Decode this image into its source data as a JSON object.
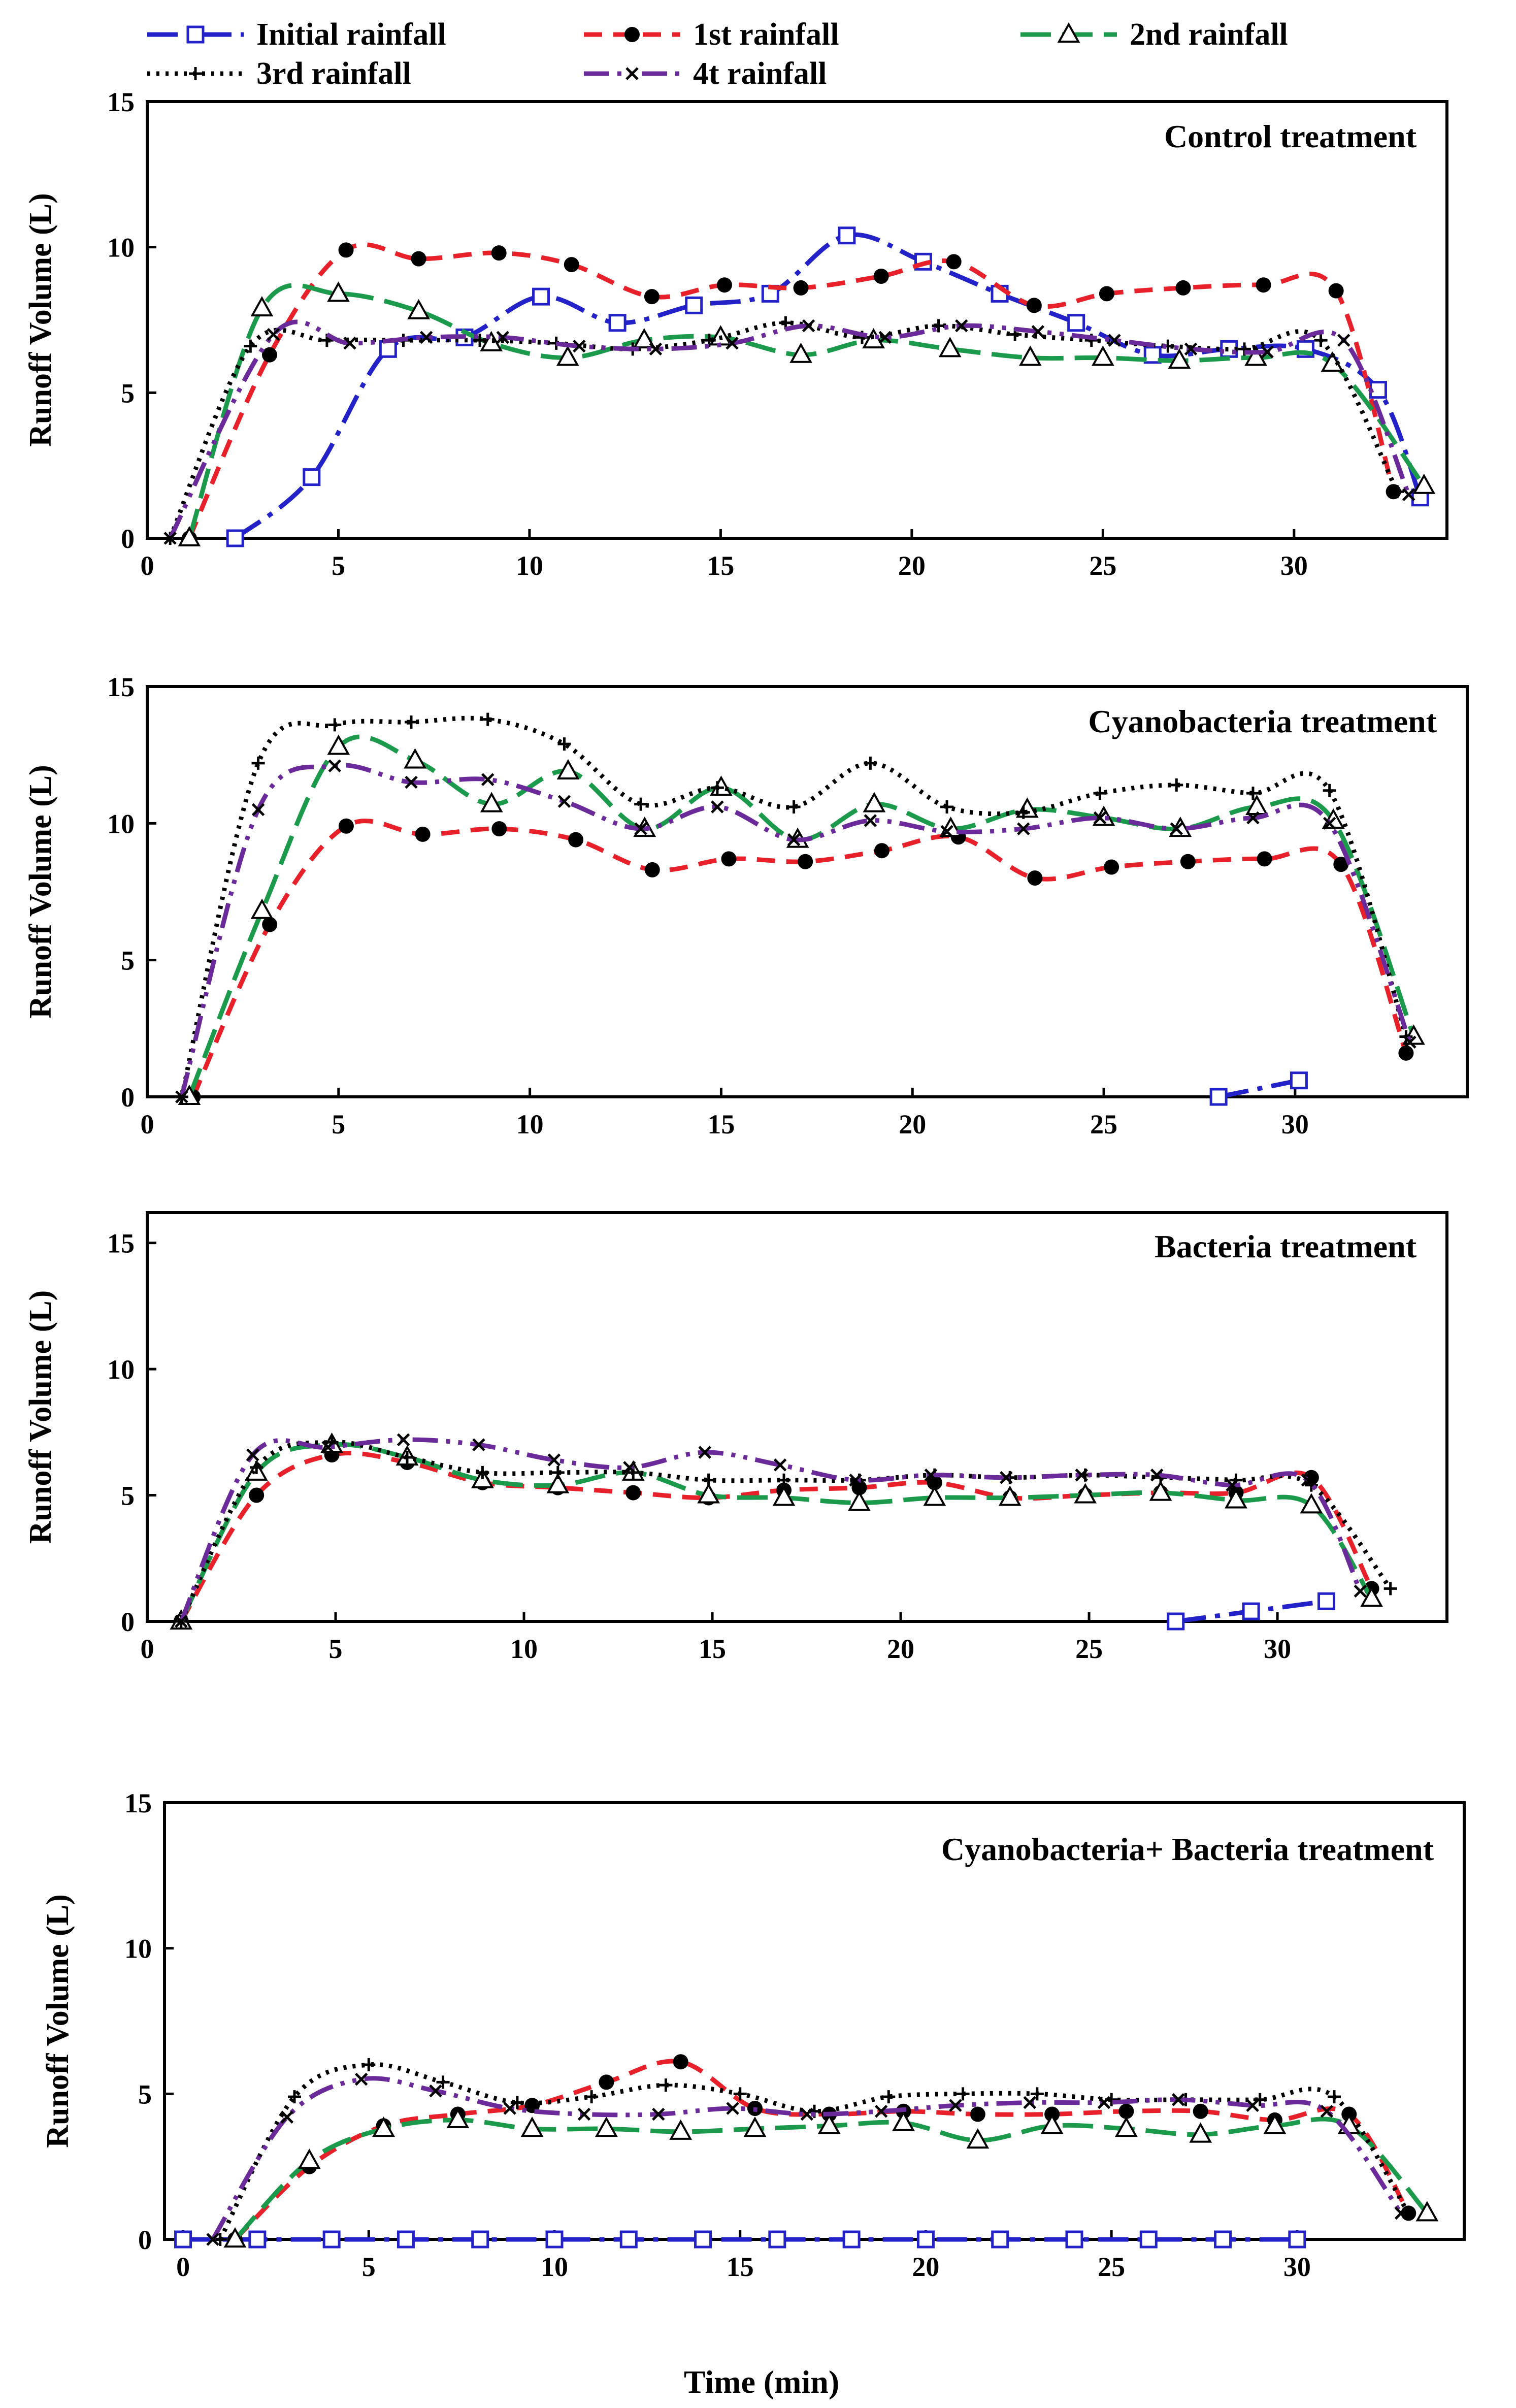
{
  "legend": [
    {
      "name": "Initial rainfall",
      "color": "#2222c8",
      "marker": "square",
      "dash": "60,18,10,18"
    },
    {
      "name": "1st rainfall",
      "color": "#e8202a",
      "marker": "dot",
      "dash": "36,22"
    },
    {
      "name": "2nd rainfall",
      "color": "#1a9a4a",
      "marker": "triangle",
      "dash": "60,22"
    },
    {
      "name": "3rd rainfall",
      "color": "#000000",
      "marker": "plus",
      "dash": "6,12"
    },
    {
      "name": "4t rainfall",
      "color": "#6a2a9a",
      "marker": "cross",
      "dash": "50,16,8,16,8,16"
    }
  ],
  "xlabel": "Time (min)",
  "chart_data": [
    {
      "type": "line",
      "title": "Control treatment",
      "ylabel": "Runoff Volume (L)",
      "xlim": [
        0,
        34
      ],
      "ylim": [
        0,
        15
      ],
      "xticks": [
        0,
        5,
        10,
        15,
        20,
        25,
        30
      ],
      "yticks": [
        0,
        5,
        10,
        15
      ],
      "series": [
        {
          "name": "Initial rainfall",
          "x": [
            2.3,
            4.3,
            6.3,
            8.3,
            10.3,
            12.3,
            14.3,
            16.3,
            18.3,
            20.3,
            22.3,
            24.3,
            26.3,
            28.3,
            30.3,
            32.2,
            33.3
          ],
          "y": [
            0,
            2.1,
            6.5,
            6.9,
            8.3,
            7.4,
            8.0,
            8.4,
            10.4,
            9.5,
            8.4,
            7.4,
            6.3,
            6.5,
            6.5,
            5.1,
            1.4
          ]
        },
        {
          "name": "1st rainfall",
          "x": [
            1.1,
            3.2,
            5.2,
            7.1,
            9.2,
            11.1,
            13.2,
            15.1,
            17.1,
            19.2,
            21.1,
            23.2,
            25.1,
            27.1,
            29.2,
            31.1,
            32.6
          ],
          "y": [
            0,
            6.3,
            9.9,
            9.6,
            9.8,
            9.4,
            8.3,
            8.7,
            8.6,
            9.0,
            9.5,
            8.0,
            8.4,
            8.6,
            8.7,
            8.5,
            1.6
          ]
        },
        {
          "name": "2nd rainfall",
          "x": [
            1.1,
            3.0,
            5.0,
            7.1,
            9.0,
            11.0,
            13.0,
            15.0,
            17.1,
            19.0,
            21.0,
            23.1,
            25.0,
            27.0,
            29.0,
            31.0,
            33.4
          ],
          "y": [
            0,
            7.9,
            8.4,
            7.8,
            6.7,
            6.2,
            6.8,
            6.9,
            6.3,
            6.8,
            6.5,
            6.2,
            6.2,
            6.1,
            6.2,
            6.0,
            1.8
          ]
        },
        {
          "name": "3rd rainfall",
          "x": [
            0.6,
            2.7,
            4.7,
            6.7,
            8.7,
            10.7,
            12.7,
            14.7,
            16.7,
            18.7,
            20.7,
            22.7,
            24.7,
            26.7,
            28.7,
            30.7,
            32.7
          ],
          "y": [
            0,
            6.6,
            6.8,
            6.8,
            6.8,
            6.7,
            6.5,
            6.8,
            7.4,
            6.9,
            7.3,
            7.0,
            6.8,
            6.6,
            6.5,
            6.8,
            1.6
          ]
        },
        {
          "name": "4t rainfall",
          "x": [
            0.6,
            3.3,
            5.3,
            7.3,
            9.3,
            11.3,
            13.3,
            15.3,
            17.3,
            19.3,
            21.3,
            23.3,
            25.3,
            27.3,
            29.3,
            31.3,
            33.0
          ],
          "y": [
            0,
            7.0,
            6.7,
            6.9,
            6.9,
            6.6,
            6.5,
            6.7,
            7.3,
            6.9,
            7.3,
            7.1,
            6.8,
            6.5,
            6.4,
            6.8,
            1.5
          ]
        }
      ]
    },
    {
      "type": "line",
      "title": "Cyanobacteria treatment",
      "ylabel": "Runoff Volume (L)",
      "xlim": [
        0,
        34.5
      ],
      "ylim": [
        0,
        15
      ],
      "xticks": [
        0,
        5,
        10,
        15,
        20,
        25,
        30
      ],
      "yticks": [
        0,
        5,
        10,
        15
      ],
      "series": [
        {
          "name": "Initial rainfall",
          "x": [
            28.0,
            30.1
          ],
          "y": [
            0,
            0.6
          ]
        },
        {
          "name": "1st rainfall",
          "x": [
            1.2,
            3.2,
            5.2,
            7.2,
            9.2,
            11.2,
            13.2,
            15.2,
            17.2,
            19.2,
            21.2,
            23.2,
            25.2,
            27.2,
            29.2,
            31.2,
            32.9
          ],
          "y": [
            0,
            6.3,
            9.9,
            9.6,
            9.8,
            9.4,
            8.3,
            8.7,
            8.6,
            9.0,
            9.5,
            8.0,
            8.4,
            8.6,
            8.7,
            8.5,
            1.6
          ]
        },
        {
          "name": "2nd rainfall",
          "x": [
            1.1,
            3.0,
            5.0,
            7.0,
            9.0,
            11.0,
            13.0,
            15.0,
            17.0,
            19.0,
            21.0,
            23.0,
            25.0,
            27.0,
            29.0,
            31.0,
            33.1
          ],
          "y": [
            0,
            6.8,
            12.8,
            12.3,
            10.7,
            11.9,
            9.8,
            11.3,
            9.4,
            10.7,
            9.8,
            10.5,
            10.2,
            9.8,
            10.6,
            10.1,
            2.2
          ]
        },
        {
          "name": "3rd rainfall",
          "x": [
            0.9,
            2.9,
            4.9,
            6.9,
            8.9,
            10.9,
            12.9,
            14.9,
            16.9,
            18.9,
            20.9,
            22.9,
            24.9,
            26.9,
            28.9,
            30.9,
            32.9
          ],
          "y": [
            0,
            12.2,
            13.6,
            13.7,
            13.8,
            12.9,
            10.7,
            11.3,
            10.6,
            12.2,
            10.6,
            10.4,
            11.1,
            11.4,
            11.1,
            11.2,
            2.2
          ]
        },
        {
          "name": "4t rainfall",
          "x": [
            0.9,
            2.9,
            4.9,
            6.9,
            8.9,
            10.9,
            12.9,
            14.9,
            16.9,
            18.9,
            20.9,
            22.9,
            24.9,
            26.9,
            28.9,
            30.9,
            33.0
          ],
          "y": [
            0,
            10.5,
            12.1,
            11.5,
            11.6,
            10.8,
            9.8,
            10.6,
            9.4,
            10.1,
            9.7,
            9.8,
            10.2,
            9.8,
            10.2,
            10.0,
            2.0
          ]
        }
      ]
    },
    {
      "type": "line",
      "title": "Bacteria treatment",
      "ylabel": "Runoff Volume (L)",
      "xlim": [
        0,
        34.5
      ],
      "ylim": [
        0,
        16.2
      ],
      "xticks": [
        0,
        5,
        10,
        15,
        20,
        25,
        30
      ],
      "yticks": [
        0,
        5,
        10,
        15
      ],
      "series": [
        {
          "name": "Initial rainfall",
          "x": [
            27.3,
            29.3,
            31.3
          ],
          "y": [
            0,
            0.4,
            0.8
          ]
        },
        {
          "name": "1st rainfall",
          "x": [
            0.9,
            2.9,
            4.9,
            6.9,
            8.9,
            10.9,
            12.9,
            14.9,
            16.9,
            18.9,
            20.9,
            22.9,
            24.9,
            26.9,
            28.9,
            30.9,
            32.5
          ],
          "y": [
            0,
            5.0,
            6.6,
            6.3,
            5.5,
            5.3,
            5.1,
            4.9,
            5.2,
            5.3,
            5.5,
            4.9,
            5.0,
            5.1,
            5.1,
            5.7,
            1.3
          ]
        },
        {
          "name": "2nd rainfall",
          "x": [
            0.9,
            2.9,
            4.9,
            6.9,
            8.9,
            10.9,
            12.9,
            14.9,
            16.9,
            18.9,
            20.9,
            22.9,
            24.9,
            26.9,
            28.9,
            30.9,
            32.5
          ],
          "y": [
            0,
            5.9,
            7.0,
            6.5,
            5.6,
            5.4,
            5.9,
            5.0,
            4.9,
            4.7,
            4.9,
            4.9,
            5.0,
            5.1,
            4.8,
            4.6,
            0.9
          ]
        },
        {
          "name": "3rd rainfall",
          "x": [
            0.9,
            2.9,
            4.9,
            6.9,
            8.9,
            10.9,
            12.9,
            14.9,
            16.9,
            18.9,
            20.9,
            22.9,
            24.9,
            26.9,
            28.9,
            30.9,
            33.0
          ],
          "y": [
            0,
            6.1,
            7.1,
            6.5,
            5.9,
            5.9,
            5.9,
            5.6,
            5.6,
            5.6,
            5.8,
            5.7,
            5.8,
            5.7,
            5.6,
            5.4,
            1.3
          ]
        },
        {
          "name": "4t rainfall",
          "x": [
            0.9,
            2.8,
            4.8,
            6.8,
            8.8,
            10.8,
            12.8,
            14.8,
            16.8,
            18.8,
            20.8,
            22.8,
            24.8,
            26.8,
            28.8,
            30.8,
            32.2
          ],
          "y": [
            0,
            6.6,
            6.9,
            7.2,
            7.0,
            6.4,
            6.1,
            6.7,
            6.2,
            5.6,
            5.8,
            5.7,
            5.8,
            5.8,
            5.4,
            5.6,
            1.2
          ]
        }
      ]
    },
    {
      "type": "line",
      "title": "Cyanobacteria+ Bacteria treatment",
      "ylabel": "Runoff Volume (L)",
      "xlim": [
        -0.5,
        34.5
      ],
      "ylim": [
        0,
        15
      ],
      "xticks": [
        0,
        5,
        10,
        15,
        20,
        25,
        30
      ],
      "yticks": [
        0,
        5,
        10,
        15
      ],
      "series": [
        {
          "name": "Initial rainfall",
          "x": [
            0,
            2,
            4,
            6,
            8,
            10,
            12,
            14,
            16,
            18,
            20,
            22,
            24,
            26,
            28,
            30
          ],
          "y": [
            0,
            0,
            0,
            0,
            0,
            0,
            0,
            0,
            0,
            0,
            0,
            0,
            0,
            0,
            0,
            0
          ]
        },
        {
          "name": "1st rainfall",
          "x": [
            1.4,
            3.4,
            5.4,
            7.4,
            9.4,
            11.4,
            13.4,
            15.4,
            17.4,
            19.4,
            21.4,
            23.4,
            25.4,
            27.4,
            29.4,
            31.4,
            33.0
          ],
          "y": [
            0,
            2.5,
            3.9,
            4.3,
            4.6,
            5.4,
            6.1,
            4.5,
            4.3,
            4.4,
            4.3,
            4.3,
            4.4,
            4.4,
            4.1,
            4.3,
            0.9
          ]
        },
        {
          "name": "2nd rainfall",
          "x": [
            1.4,
            3.4,
            5.4,
            7.4,
            9.4,
            11.4,
            13.4,
            15.4,
            17.4,
            19.4,
            21.4,
            23.4,
            25.4,
            27.4,
            29.4,
            31.4,
            33.5
          ],
          "y": [
            0,
            2.7,
            3.8,
            4.1,
            3.8,
            3.8,
            3.7,
            3.8,
            3.9,
            4.0,
            3.4,
            3.9,
            3.8,
            3.6,
            3.9,
            3.9,
            0.9
          ]
        },
        {
          "name": "3rd rainfall",
          "x": [
            1.0,
            3.0,
            5.0,
            7.0,
            9.0,
            11.0,
            13.0,
            15.0,
            17.0,
            19.0,
            21.0,
            23.0,
            25.0,
            27.0,
            29.0,
            31.0,
            33.0
          ],
          "y": [
            0,
            4.9,
            6.0,
            5.4,
            4.7,
            4.9,
            5.3,
            5.0,
            4.4,
            4.9,
            5.0,
            5.0,
            4.8,
            4.8,
            4.8,
            4.9,
            0.9
          ]
        },
        {
          "name": "4t rainfall",
          "x": [
            0.8,
            2.8,
            4.8,
            6.8,
            8.8,
            10.8,
            12.8,
            14.8,
            16.8,
            18.8,
            20.8,
            22.8,
            24.8,
            26.8,
            28.8,
            30.8,
            32.8
          ],
          "y": [
            0,
            4.2,
            5.5,
            5.1,
            4.5,
            4.3,
            4.3,
            4.5,
            4.3,
            4.4,
            4.6,
            4.7,
            4.7,
            4.8,
            4.6,
            4.4,
            0.9
          ]
        }
      ]
    }
  ]
}
